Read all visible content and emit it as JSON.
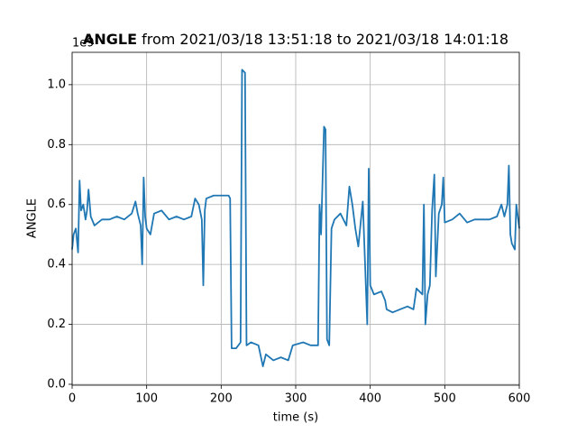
{
  "chart_data": {
    "type": "line",
    "title": {
      "variable": "ANGLE",
      "range": "from 2021/03/18 13:51:18 to 2021/03/18 14:01:18"
    },
    "xlabel": "time (s)",
    "ylabel": "ANGLE",
    "y_offset_label": "1e9",
    "xlim": [
      0,
      600
    ],
    "xticks": [
      0,
      100,
      200,
      300,
      400,
      500,
      600
    ],
    "ylim": [
      -0.003,
      1.108
    ],
    "yticks": [
      {
        "value": 0,
        "label": "0.0"
      },
      {
        "value": 0.2,
        "label": "0.2"
      },
      {
        "value": 0.4,
        "label": "0.4"
      },
      {
        "value": 0.6,
        "label": "0.6"
      },
      {
        "value": 0.8,
        "label": "0.8"
      },
      {
        "value": 1.0,
        "label": "1.0"
      }
    ],
    "grid": true,
    "x": [
      0,
      2,
      5,
      8,
      10,
      12,
      15,
      18,
      20,
      22,
      25,
      30,
      40,
      50,
      60,
      70,
      80,
      85,
      88,
      92,
      94,
      96,
      98,
      100,
      105,
      110,
      120,
      130,
      140,
      150,
      160,
      165,
      170,
      174,
      176,
      178,
      180,
      190,
      200,
      210,
      212,
      214,
      220,
      226,
      228,
      232,
      234,
      240,
      250,
      256,
      260,
      270,
      280,
      290,
      296,
      310,
      320,
      330,
      332,
      334,
      338,
      340,
      342,
      345,
      348,
      352,
      360,
      368,
      372,
      376,
      380,
      384,
      390,
      396,
      398,
      400,
      405,
      415,
      420,
      422,
      430,
      440,
      450,
      458,
      462,
      470,
      472,
      474,
      477,
      480,
      483,
      486,
      488,
      492,
      496,
      498,
      500,
      510,
      520,
      530,
      540,
      550,
      560,
      570,
      576,
      580,
      584,
      586,
      588,
      590,
      594,
      596,
      600
    ],
    "series": [
      {
        "name": "ANGLE",
        "color": "#1f77b4",
        "values": [
          0.45,
          0.5,
          0.52,
          0.44,
          0.68,
          0.58,
          0.6,
          0.55,
          0.58,
          0.65,
          0.56,
          0.53,
          0.55,
          0.55,
          0.56,
          0.55,
          0.57,
          0.61,
          0.57,
          0.53,
          0.4,
          0.69,
          0.56,
          0.52,
          0.5,
          0.57,
          0.58,
          0.55,
          0.56,
          0.55,
          0.56,
          0.62,
          0.6,
          0.55,
          0.33,
          0.58,
          0.62,
          0.63,
          0.63,
          0.63,
          0.62,
          0.12,
          0.12,
          0.14,
          1.05,
          1.04,
          0.13,
          0.14,
          0.13,
          0.06,
          0.1,
          0.08,
          0.09,
          0.08,
          0.13,
          0.14,
          0.13,
          0.13,
          0.6,
          0.5,
          0.86,
          0.85,
          0.15,
          0.13,
          0.52,
          0.55,
          0.57,
          0.53,
          0.66,
          0.6,
          0.52,
          0.46,
          0.61,
          0.2,
          0.72,
          0.33,
          0.3,
          0.31,
          0.28,
          0.25,
          0.24,
          0.25,
          0.26,
          0.25,
          0.32,
          0.3,
          0.6,
          0.2,
          0.3,
          0.33,
          0.58,
          0.7,
          0.36,
          0.57,
          0.6,
          0.69,
          0.54,
          0.55,
          0.57,
          0.54,
          0.55,
          0.55,
          0.55,
          0.56,
          0.6,
          0.56,
          0.6,
          0.73,
          0.5,
          0.47,
          0.45,
          0.6,
          0.52
        ]
      }
    ]
  }
}
